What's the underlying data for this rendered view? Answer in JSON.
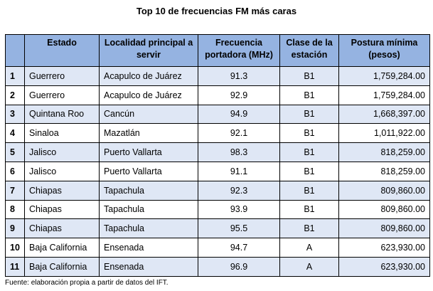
{
  "title": "Top 10 de frecuencias FM más caras",
  "headers": {
    "num": "",
    "estado": "Estado",
    "localidad": "Localidad principal a servir",
    "frecuencia": "Frecuencia portadora (MHz)",
    "clase": "Clase de la estación",
    "postura": "Postura mínima (pesos)"
  },
  "rows": [
    {
      "num": "1",
      "estado": "Guerrero",
      "localidad": "Acapulco de Juárez",
      "frecuencia": "91.3",
      "clase": "B1",
      "postura": "1,759,284.00"
    },
    {
      "num": "2",
      "estado": "Guerrero",
      "localidad": "Acapulco de Juárez",
      "frecuencia": "92.9",
      "clase": "B1",
      "postura": "1,759,284.00"
    },
    {
      "num": "3",
      "estado": "Quintana Roo",
      "localidad": "Cancún",
      "frecuencia": "94.9",
      "clase": "B1",
      "postura": "1,668,397.00"
    },
    {
      "num": "4",
      "estado": "Sinaloa",
      "localidad": "Mazatlán",
      "frecuencia": "92.1",
      "clase": "B1",
      "postura": "1,011,922.00"
    },
    {
      "num": "5",
      "estado": "Jalisco",
      "localidad": "Puerto Vallarta",
      "frecuencia": "98.3",
      "clase": "B1",
      "postura": "818,259.00"
    },
    {
      "num": "6",
      "estado": "Jalisco",
      "localidad": "Puerto Vallarta",
      "frecuencia": "91.1",
      "clase": "B1",
      "postura": "818,259.00"
    },
    {
      "num": "7",
      "estado": "Chiapas",
      "localidad": "Tapachula",
      "frecuencia": "92.3",
      "clase": "B1",
      "postura": "809,860.00"
    },
    {
      "num": "8",
      "estado": "Chiapas",
      "localidad": "Tapachula",
      "frecuencia": "93.9",
      "clase": "B1",
      "postura": "809,860.00"
    },
    {
      "num": "9",
      "estado": "Chiapas",
      "localidad": "Tapachula",
      "frecuencia": "95.5",
      "clase": "B1",
      "postura": "809,860.00"
    },
    {
      "num": "10",
      "estado": "Baja California",
      "localidad": "Ensenada",
      "frecuencia": "94.7",
      "clase": "A",
      "postura": "623,930.00"
    },
    {
      "num": "11",
      "estado": "Baja California",
      "localidad": "Ensenada",
      "frecuencia": "96.9",
      "clase": "A",
      "postura": "623,930.00"
    }
  ],
  "source": "Fuente: elaboración propia a partir de datos del IFT.",
  "colors": {
    "header_bg": "#95b3e1",
    "band_bg": "#dfe7f5",
    "border": "#000000"
  }
}
